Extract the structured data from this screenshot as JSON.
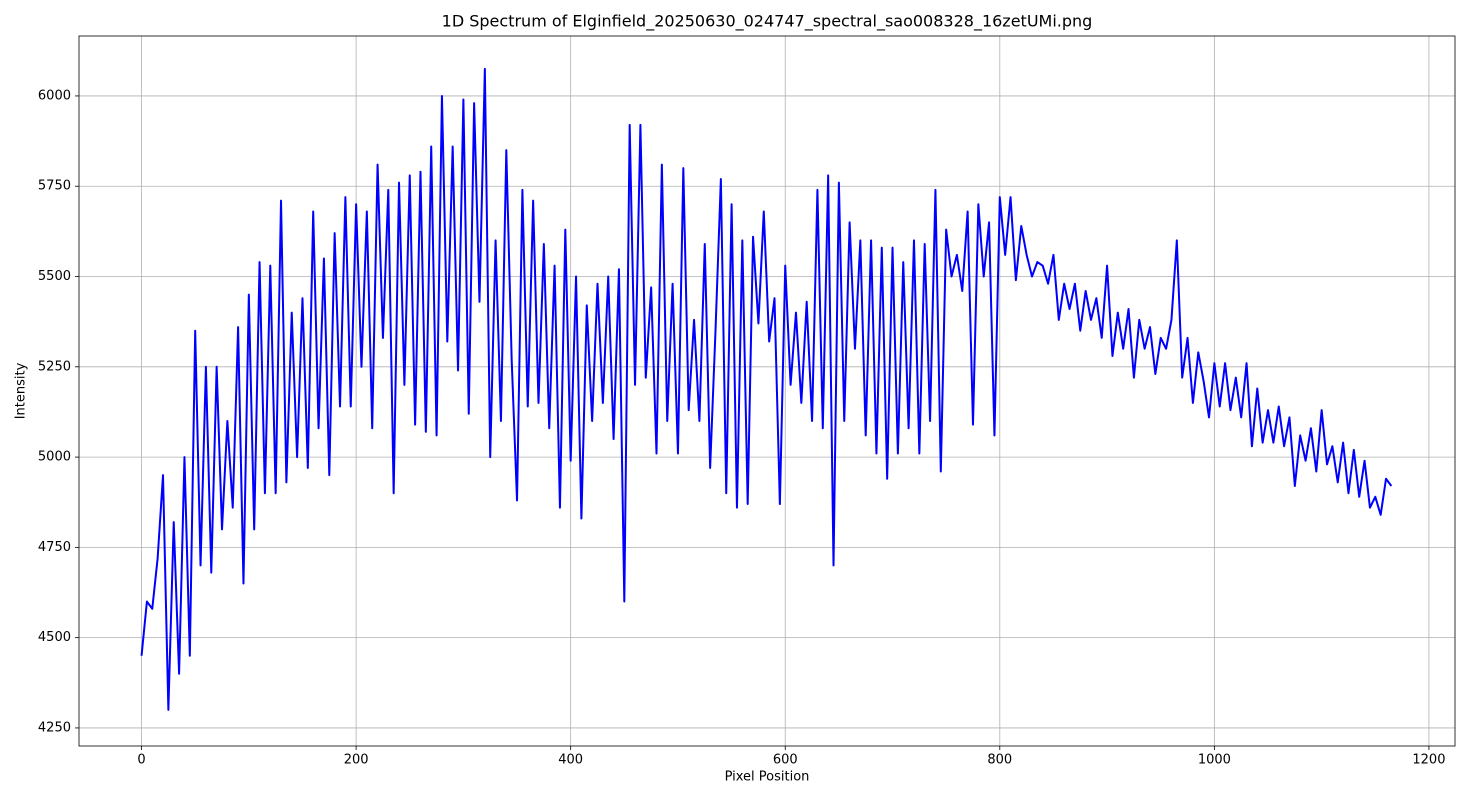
{
  "chart_data": {
    "type": "line",
    "title": "1D Spectrum of Elginfield_20250630_024747_spectral_sao008328_16zetUMi.png",
    "x_label": "Pixel Position",
    "y_label": "Intensity",
    "xlim": [
      -58.3,
      1224.3
    ],
    "ylim": [
      4200,
      6166
    ],
    "xticks": [
      0,
      200,
      400,
      600,
      800,
      1000,
      1200
    ],
    "yticks": [
      4250,
      4500,
      4750,
      5000,
      5250,
      5500,
      5750,
      6000
    ],
    "grid": true,
    "x": [
      0,
      5,
      10,
      15,
      20,
      25,
      30,
      35,
      40,
      45,
      50,
      55,
      60,
      65,
      70,
      75,
      80,
      85,
      90,
      95,
      100,
      105,
      110,
      115,
      120,
      125,
      130,
      135,
      140,
      145,
      150,
      155,
      160,
      165,
      170,
      175,
      180,
      185,
      190,
      195,
      200,
      205,
      210,
      215,
      220,
      225,
      230,
      235,
      240,
      245,
      250,
      255,
      260,
      265,
      270,
      275,
      280,
      285,
      290,
      295,
      300,
      305,
      310,
      315,
      320,
      325,
      330,
      335,
      340,
      345,
      350,
      355,
      360,
      365,
      370,
      375,
      380,
      385,
      390,
      395,
      400,
      405,
      410,
      415,
      420,
      425,
      430,
      435,
      440,
      445,
      450,
      455,
      460,
      465,
      470,
      475,
      480,
      485,
      490,
      495,
      500,
      505,
      510,
      515,
      520,
      525,
      530,
      535,
      540,
      545,
      550,
      555,
      560,
      565,
      570,
      575,
      580,
      585,
      590,
      595,
      600,
      605,
      610,
      615,
      620,
      625,
      630,
      635,
      640,
      645,
      650,
      655,
      660,
      665,
      670,
      675,
      680,
      685,
      690,
      695,
      700,
      705,
      710,
      715,
      720,
      725,
      730,
      735,
      740,
      745,
      750,
      755,
      760,
      765,
      770,
      775,
      780,
      785,
      790,
      795,
      800,
      805,
      810,
      815,
      820,
      825,
      830,
      835,
      840,
      845,
      850,
      855,
      860,
      865,
      870,
      875,
      880,
      885,
      890,
      895,
      900,
      905,
      910,
      915,
      920,
      925,
      930,
      935,
      940,
      945,
      950,
      955,
      960,
      965,
      970,
      975,
      980,
      985,
      990,
      995,
      1000,
      1005,
      1010,
      1015,
      1020,
      1025,
      1030,
      1035,
      1040,
      1045,
      1050,
      1055,
      1060,
      1065,
      1070,
      1075,
      1080,
      1085,
      1090,
      1095,
      1100,
      1105,
      1110,
      1115,
      1120,
      1125,
      1130,
      1135,
      1140,
      1145,
      1150,
      1155,
      1160,
      1165
    ],
    "series": [
      {
        "name": "Intensity",
        "color": "#0000ff",
        "values": [
          4450,
          4600,
          4580,
          4720,
          4950,
          4300,
          4820,
          4400,
          5000,
          4450,
          5350,
          4700,
          5250,
          4680,
          5250,
          4800,
          5100,
          4860,
          5360,
          4650,
          5450,
          4800,
          5540,
          4900,
          5530,
          4900,
          5710,
          4930,
          5400,
          5000,
          5440,
          4970,
          5680,
          5080,
          5550,
          4950,
          5620,
          5140,
          5720,
          5140,
          5700,
          5250,
          5680,
          5080,
          5810,
          5330,
          5740,
          4900,
          5760,
          5200,
          5780,
          5090,
          5790,
          5070,
          5860,
          5060,
          6000,
          5320,
          5860,
          5240,
          5990,
          5120,
          5980,
          5430,
          6075,
          5000,
          5600,
          5100,
          5850,
          5270,
          4880,
          5740,
          5140,
          5710,
          5150,
          5590,
          5080,
          5530,
          4860,
          5630,
          4990,
          5500,
          4830,
          5420,
          5100,
          5480,
          5150,
          5500,
          5050,
          5520,
          4600,
          5920,
          5200,
          5920,
          5220,
          5470,
          5010,
          5810,
          5100,
          5480,
          5010,
          5800,
          5130,
          5380,
          5100,
          5590,
          4970,
          5350,
          5770,
          4900,
          5700,
          4860,
          5600,
          4870,
          5610,
          5370,
          5680,
          5320,
          5440,
          4870,
          5530,
          5200,
          5400,
          5150,
          5430,
          5100,
          5740,
          5080,
          5780,
          4700,
          5760,
          5100,
          5650,
          5300,
          5600,
          5060,
          5600,
          5010,
          5580,
          4940,
          5580,
          5010,
          5540,
          5080,
          5600,
          5010,
          5590,
          5100,
          5740,
          4960,
          5630,
          5500,
          5560,
          5460,
          5680,
          5090,
          5700,
          5500,
          5650,
          5060,
          5720,
          5560,
          5720,
          5490,
          5640,
          5560,
          5500,
          5540,
          5530,
          5480,
          5560,
          5380,
          5480,
          5410,
          5480,
          5350,
          5460,
          5380,
          5440,
          5330,
          5530,
          5280,
          5400,
          5300,
          5410,
          5220,
          5380,
          5300,
          5360,
          5230,
          5330,
          5300,
          5380,
          5600,
          5220,
          5330,
          5150,
          5290,
          5210,
          5110,
          5260,
          5140,
          5260,
          5130,
          5220,
          5110,
          5260,
          5030,
          5190,
          5040,
          5130,
          5040,
          5140,
          5030,
          5110,
          4920,
          5060,
          4990,
          5080,
          4960,
          5130,
          4980,
          5030,
          4930,
          5040,
          4900,
          5020,
          4890,
          4990,
          4860,
          4890,
          4840,
          4940,
          4920
        ]
      }
    ]
  }
}
